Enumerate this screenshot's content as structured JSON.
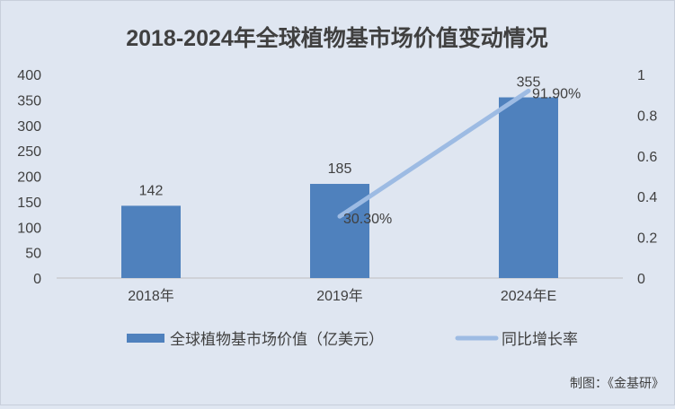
{
  "chart_data": {
    "type": "bar",
    "title": "2018-2024年全球植物基市场价值变动情况",
    "categories": [
      "2018年",
      "2019年",
      "2024年E"
    ],
    "series": [
      {
        "name": "全球植物基市场价值（亿美元）",
        "type": "bar",
        "axis": "left",
        "values": [
          142,
          185,
          355
        ],
        "labels": [
          "142",
          "185",
          "355"
        ],
        "color": "#4f81bd"
      },
      {
        "name": "同比增长率",
        "type": "line",
        "axis": "right",
        "values": [
          null,
          0.303,
          0.919
        ],
        "labels": [
          "",
          "30.30%",
          "91.90%"
        ],
        "color": "#9dbbe3"
      }
    ],
    "ylim_left": [
      0,
      400
    ],
    "yticks_left": [
      "0",
      "50",
      "100",
      "150",
      "200",
      "250",
      "300",
      "350",
      "400"
    ],
    "ylim_right": [
      0,
      1
    ],
    "yticks_right": [
      "0",
      "0.2",
      "0.4",
      "0.6",
      "0.8",
      "1"
    ],
    "grid": false,
    "legend": "bottom",
    "source": "制图：《金基研》"
  }
}
